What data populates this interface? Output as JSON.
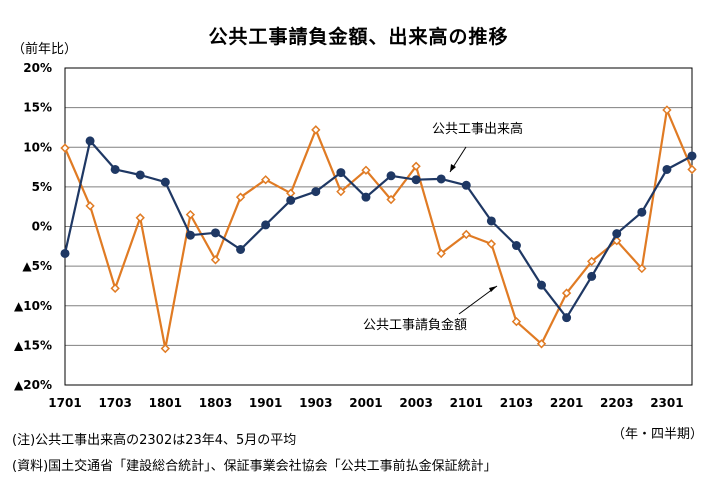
{
  "page": {
    "title": "公共工事請負金額、出来高の推移",
    "y_unit": "（前年比）",
    "x_unit": "（年・四半期）",
    "note_1": "(注)公共工事出来高の2302は23年4、5月の平均",
    "note_2": "(資料)国土交通省「建設総合統計」、保証事業会社協会「公共工事前払金保証統計」"
  },
  "chart_data": {
    "type": "line",
    "title": "公共工事請負金額、出来高の推移",
    "xlabel": "（年・四半期）",
    "ylabel": "（前年比）",
    "ylim": [
      -20,
      20
    ],
    "y_ticks": [
      {
        "value": 20,
        "label": "20%"
      },
      {
        "value": 15,
        "label": "15%"
      },
      {
        "value": 10,
        "label": "10%"
      },
      {
        "value": 5,
        "label": "5%"
      },
      {
        "value": 0,
        "label": "0%"
      },
      {
        "value": -5,
        "label": "▲5%"
      },
      {
        "value": -10,
        "label": "▲10%"
      },
      {
        "value": -15,
        "label": "▲15%"
      },
      {
        "value": -20,
        "label": "▲20%"
      }
    ],
    "x": [
      "1701",
      "1702",
      "1703",
      "1704",
      "1801",
      "1802",
      "1803",
      "1804",
      "1901",
      "1902",
      "1903",
      "1904",
      "2001",
      "2002",
      "2003",
      "2004",
      "2101",
      "2102",
      "2103",
      "2104",
      "2201",
      "2202",
      "2203",
      "2204",
      "2301",
      "2302"
    ],
    "x_tick_labels": [
      "1701",
      "1703",
      "1801",
      "1803",
      "1901",
      "1903",
      "2001",
      "2003",
      "2101",
      "2103",
      "2201",
      "2203",
      "2301"
    ],
    "grid": "horizontal",
    "series": [
      {
        "name": "公共工事出来高",
        "color": "#1f3864",
        "marker": "circle",
        "values": [
          -3.4,
          10.8,
          7.2,
          6.5,
          5.6,
          -1.1,
          -0.8,
          -2.9,
          0.2,
          3.3,
          4.4,
          6.8,
          3.7,
          6.4,
          5.9,
          6.0,
          5.2,
          0.7,
          -2.4,
          -7.4,
          -11.5,
          -6.3,
          -0.9,
          1.8,
          7.2,
          8.9
        ]
      },
      {
        "name": "公共工事請負金額",
        "color": "#e07b24",
        "marker": "diamond",
        "values": [
          9.9,
          2.6,
          -7.8,
          1.1,
          -15.4,
          1.5,
          -4.2,
          3.7,
          5.9,
          4.2,
          12.2,
          4.4,
          7.1,
          3.4,
          7.6,
          -3.4,
          -1.0,
          -2.2,
          -12.0,
          -14.8,
          -8.4,
          -4.4,
          -1.8,
          -5.3,
          14.7,
          7.2
        ]
      }
    ]
  }
}
